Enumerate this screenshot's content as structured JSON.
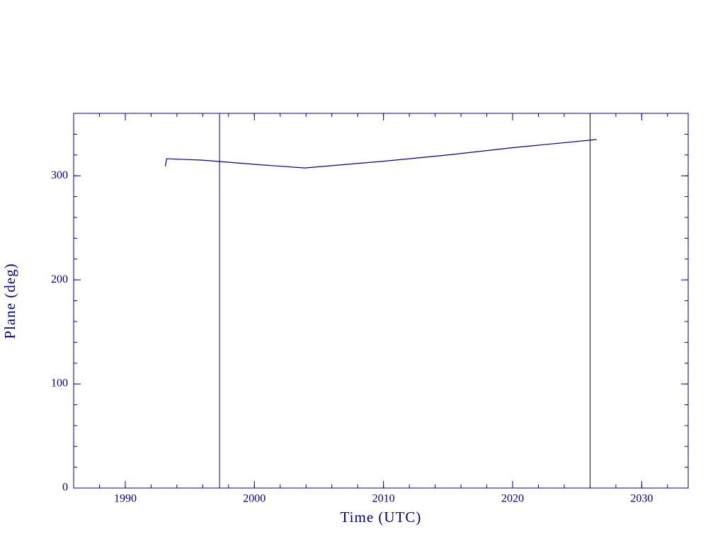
{
  "chart_data": {
    "type": "line",
    "xlabel": "Time (UTC)",
    "ylabel": "Plane (deg)",
    "color": "#00008b",
    "x": [
      1993.1,
      1993.2,
      1996,
      2000,
      2003.9,
      2010,
      2015,
      2020,
      2026.5
    ],
    "values": [
      309,
      316.4,
      315,
      311,
      307.5,
      314,
      320,
      327,
      334.8
    ],
    "vlines": [
      1997.3,
      2026.0
    ],
    "xlim": [
      1986,
      2033.6
    ],
    "xticks": [
      1990,
      2000,
      2010,
      2020,
      2030
    ],
    "ylim": [
      0,
      360
    ],
    "yticks": [
      0,
      100,
      200,
      300
    ]
  }
}
